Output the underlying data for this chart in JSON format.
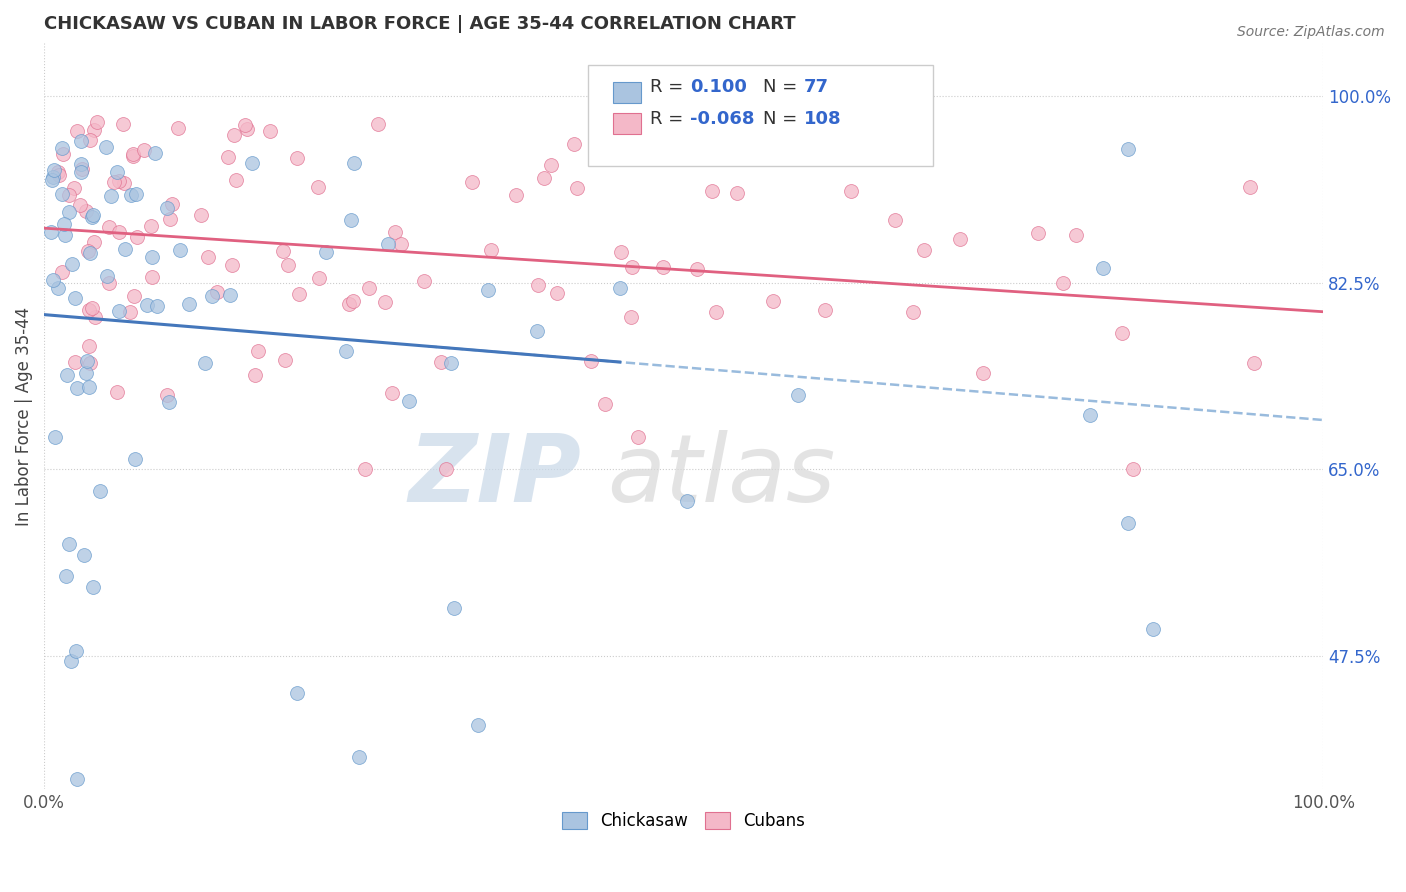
{
  "title": "CHICKASAW VS CUBAN IN LABOR FORCE | AGE 35-44 CORRELATION CHART",
  "source_text": "Source: ZipAtlas.com",
  "ylabel": "In Labor Force | Age 35-44",
  "xlim": [
    0.0,
    1.0
  ],
  "ylim": [
    0.35,
    1.05
  ],
  "yticks": [
    0.475,
    0.65,
    0.825,
    1.0
  ],
  "ytick_labels": [
    "47.5%",
    "65.0%",
    "82.5%",
    "100.0%"
  ],
  "xtick_labels": [
    "0.0%",
    "100.0%"
  ],
  "xticks": [
    0.0,
    1.0
  ],
  "background_color": "#ffffff",
  "grid_color": "#cccccc",
  "chickasaw_color": "#aac4e0",
  "cuban_color": "#f4b8c8",
  "chickasaw_edge_color": "#6699cc",
  "cuban_edge_color": "#e07090",
  "chickasaw_line_color": "#4477bb",
  "cuban_line_color": "#e06080",
  "dash_line_color": "#99bbdd",
  "legend_R1": "0.100",
  "legend_N1": "77",
  "legend_R2": "-0.068",
  "legend_N2": "108",
  "watermark_ZIP": "ZIP",
  "watermark_atlas": "atlas",
  "title_color": "#333333",
  "tick_color": "#555555",
  "label_color": "#3366cc"
}
